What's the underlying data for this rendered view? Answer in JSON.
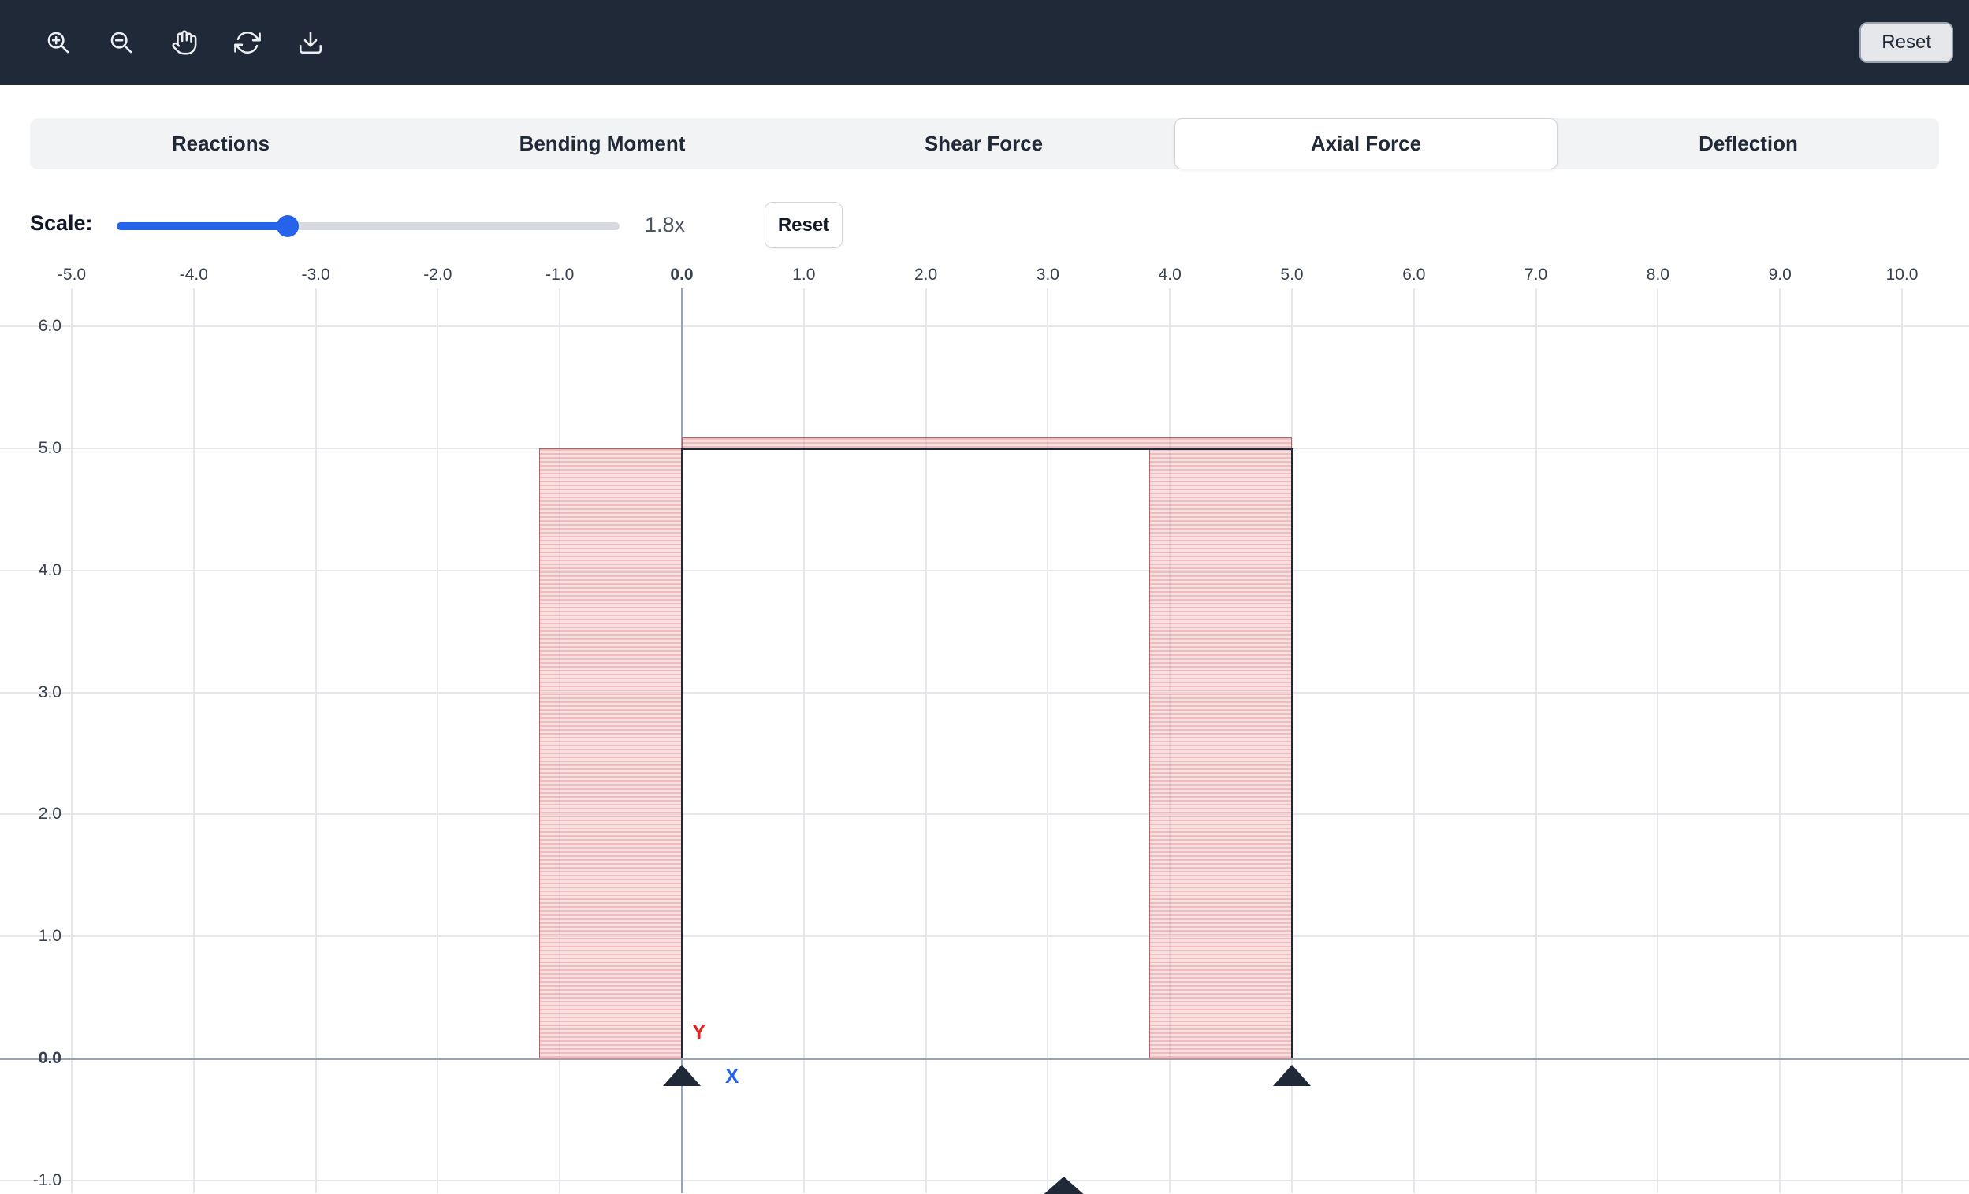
{
  "toolbar": {
    "background": "#1f2937",
    "buttons": [
      {
        "name": "zoom-in"
      },
      {
        "name": "zoom-out"
      },
      {
        "name": "pan"
      },
      {
        "name": "refresh"
      },
      {
        "name": "download"
      }
    ],
    "reset_label": "Reset"
  },
  "tabs": {
    "items": [
      {
        "label": "Reactions",
        "active": false
      },
      {
        "label": "Bending Moment",
        "active": false
      },
      {
        "label": "Shear Force",
        "active": false
      },
      {
        "label": "Axial Force",
        "active": true
      },
      {
        "label": "Deflection",
        "active": false
      }
    ]
  },
  "scale_control": {
    "label": "Scale:",
    "value": "1.8x",
    "percent": 34,
    "reset_label": "Reset"
  },
  "chart_data": {
    "type": "area",
    "description": "Axial force diagram drawn on a portal frame (columns at x=0 and x=5, beam at y=5)",
    "x_ticks": {
      "values": [
        -5,
        -4,
        -3,
        -2,
        -1,
        0,
        1,
        2,
        3,
        4,
        5,
        6,
        7,
        8,
        9,
        10
      ],
      "labels": [
        "-5.0",
        "-4.0",
        "-3.0",
        "-2.0",
        "-1.0",
        "0.0",
        "1.0",
        "2.0",
        "3.0",
        "4.0",
        "5.0",
        "6.0",
        "7.0",
        "8.0",
        "9.0",
        "10.0"
      ]
    },
    "y_ticks": {
      "values": [
        6,
        5,
        4,
        3,
        2,
        1,
        0,
        -1
      ],
      "labels": [
        "6.0",
        "5.0",
        "4.0",
        "3.0",
        "2.0",
        "1.0",
        "0.0",
        "-1.0"
      ]
    },
    "origin_labels": {
      "x": "X",
      "y": "Y"
    },
    "frame_members": [
      {
        "name": "left-column",
        "x1": 0,
        "y1": 0,
        "x2": 0,
        "y2": 5
      },
      {
        "name": "beam",
        "x1": 0,
        "y1": 5,
        "x2": 5,
        "y2": 5
      },
      {
        "name": "right-column",
        "x1": 5,
        "y1": 0,
        "x2": 5,
        "y2": 5
      }
    ],
    "supports": [
      {
        "x": 0,
        "y": 0
      },
      {
        "x": 5,
        "y": 0
      }
    ],
    "axial_regions": [
      {
        "member": "left-column",
        "x1": -1.17,
        "y1": 0,
        "x2": 0,
        "y2": 5
      },
      {
        "member": "beam",
        "x1": 0,
        "y1": 5,
        "x2": 5,
        "y2": 5.09
      },
      {
        "member": "right-column",
        "x1": 3.83,
        "y1": 0,
        "x2": 5,
        "y2": 5
      }
    ],
    "partial_marker": {
      "x": 3.13
    },
    "colors": {
      "region_fill": "rgba(244,198,198,0.55)",
      "region_stripe": "rgba(221,122,122,0.50)",
      "region_border": "rgba(178,76,76,0.85)",
      "frame": "#1f2937",
      "support": "#1f2937",
      "grid_line": "#e5e7eb",
      "zero_line": "#9ca3af",
      "tick_label": "#374151",
      "x_origin": "#2563eb",
      "y_origin": "#dc2626"
    }
  }
}
